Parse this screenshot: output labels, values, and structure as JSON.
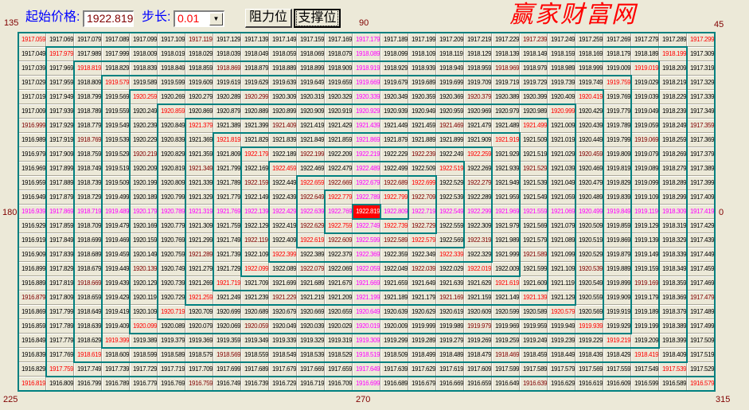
{
  "toolbar": {
    "start_price_label": "起始价格:",
    "start_price_value": "1922.8199",
    "step_label": "步长:",
    "step_value": "0.01",
    "resistance_button": "阻力位",
    "support_button": "支撑位",
    "dropdown_icon": "chevron-down-icon"
  },
  "angles": {
    "a135": "135",
    "a90": "90",
    "a45": "45",
    "a180": "180",
    "a0": "0",
    "a225": "225",
    "a270": "270",
    "a315": "315"
  },
  "watermark": "赢家财富网",
  "colors": {
    "grid_line": "#008080",
    "diagonal": "#ff0000",
    "cardinal": "#ff00ff",
    "half_angle": "#800000",
    "center_bg": "#ff0000",
    "center_text": "#ffffff",
    "label": "#0000ff",
    "angle": "#800000"
  },
  "grid": [
    [
      "1917.0599",
      "1917.0699",
      "1917.0799",
      "1917.0899",
      "1917.0999",
      "1917.1099",
      "1917.1199",
      "1917.1299",
      "1917.1399",
      "1917.1499",
      "1917.1599",
      "1917.1699",
      "1917.1799",
      "1917.1899",
      "1917.1999",
      "1917.2099",
      "1917.2199",
      "1917.2299",
      "1917.2399",
      "1917.2499",
      "1917.2599",
      "1917.2699",
      "1917.2799",
      "1917.2899",
      "1917.2999"
    ],
    [
      "1917.0499",
      "1917.9799",
      "1917.9899",
      "1917.9999",
      "1918.0099",
      "1918.0199",
      "1918.0299",
      "1918.0399",
      "1918.0499",
      "1918.0599",
      "1918.0699",
      "1918.0799",
      "1918.0899",
      "1918.0999",
      "1918.1099",
      "1918.1199",
      "1918.1299",
      "1918.1399",
      "1918.1499",
      "1918.1599",
      "1918.1699",
      "1918.1799",
      "1918.1899",
      "1918.1999",
      "1917.3099"
    ],
    [
      "1917.0399",
      "1917.9699",
      "1918.8199",
      "1918.8299",
      "1918.8399",
      "1918.8499",
      "1918.8599",
      "1918.8699",
      "1918.8799",
      "1918.8899",
      "1918.8999",
      "1918.9099",
      "1918.9199",
      "1918.9299",
      "1918.9399",
      "1918.9499",
      "1918.9599",
      "1918.9699",
      "1918.9799",
      "1918.9899",
      "1918.9999",
      "1919.0099",
      "1919.0199",
      "1918.2099",
      "1917.3199"
    ],
    [
      "1917.0299",
      "1917.9599",
      "1918.8099",
      "1919.5799",
      "1919.5899",
      "1919.5999",
      "1919.6099",
      "1919.6199",
      "1919.6299",
      "1919.6399",
      "1919.6499",
      "1919.6599",
      "1919.6699",
      "1919.6799",
      "1919.6899",
      "1919.6999",
      "1919.7099",
      "1919.7199",
      "1919.7299",
      "1919.7399",
      "1919.7499",
      "1919.7599",
      "1919.0299",
      "1918.2199",
      "1917.3299"
    ],
    [
      "1917.0199",
      "1917.9499",
      "1918.7999",
      "1919.5699",
      "1920.2599",
      "1920.2699",
      "1920.2799",
      "1920.2899",
      "1920.2999",
      "1920.3099",
      "1920.3199",
      "1920.3299",
      "1920.3399",
      "1920.3499",
      "1920.3599",
      "1920.3699",
      "1920.3799",
      "1920.3899",
      "1920.3999",
      "1920.4099",
      "1920.4199",
      "1919.7699",
      "1919.0399",
      "1918.2299",
      "1917.3399"
    ],
    [
      "1917.0099",
      "1917.9399",
      "1918.7899",
      "1919.5599",
      "1920.2499",
      "1920.8599",
      "1920.8699",
      "1920.8799",
      "1920.8899",
      "1920.8999",
      "1920.9099",
      "1920.9199",
      "1920.9299",
      "1920.9399",
      "1920.9499",
      "1920.9599",
      "1920.9699",
      "1920.9799",
      "1920.9899",
      "1920.9999",
      "1920.4299",
      "1919.7799",
      "1919.0499",
      "1918.2399",
      "1917.3499"
    ],
    [
      "1916.9999",
      "1917.9299",
      "1918.7799",
      "1919.5499",
      "1920.2399",
      "1920.8499",
      "1921.3799",
      "1921.3899",
      "1921.3999",
      "1921.4099",
      "1921.4199",
      "1921.4299",
      "1921.4399",
      "1921.4499",
      "1921.4599",
      "1921.4699",
      "1921.4799",
      "1921.4899",
      "1921.4999",
      "1921.0099",
      "1920.4399",
      "1919.7899",
      "1919.0599",
      "1918.2499",
      "1917.3599"
    ],
    [
      "1916.9899",
      "1917.9199",
      "1918.7699",
      "1919.5399",
      "1920.2299",
      "1920.8399",
      "1921.3699",
      "1921.8199",
      "1921.8299",
      "1921.8399",
      "1921.8499",
      "1921.8599",
      "1921.8699",
      "1921.8799",
      "1921.8899",
      "1921.8999",
      "1921.9099",
      "1921.9199",
      "1921.5099",
      "1921.0199",
      "1920.4499",
      "1919.7999",
      "1919.0699",
      "1918.2599",
      "1917.3699"
    ],
    [
      "1916.9799",
      "1917.9099",
      "1918.7599",
      "1919.5299",
      "1920.2199",
      "1920.8299",
      "1921.3599",
      "1921.8099",
      "1922.1799",
      "1922.1899",
      "1922.1999",
      "1922.2099",
      "1922.2199",
      "1922.2299",
      "1922.2399",
      "1922.2499",
      "1922.2599",
      "1921.9299",
      "1921.5199",
      "1921.0299",
      "1920.4599",
      "1919.8099",
      "1919.0799",
      "1918.2699",
      "1917.3799"
    ],
    [
      "1916.9699",
      "1917.8999",
      "1918.7499",
      "1919.5199",
      "1920.2099",
      "1920.8199",
      "1921.3499",
      "1921.7999",
      "1922.1699",
      "1922.4599",
      "1922.4699",
      "1922.4799",
      "1922.4899",
      "1922.4999",
      "1922.5099",
      "1922.5199",
      "1922.2699",
      "1921.9399",
      "1921.5299",
      "1921.0399",
      "1920.4699",
      "1919.8199",
      "1919.0899",
      "1918.2799",
      "1917.3899"
    ],
    [
      "1916.9599",
      "1917.8899",
      "1918.7399",
      "1919.5099",
      "1920.1999",
      "1920.8099",
      "1921.3399",
      "1921.7899",
      "1922.1599",
      "1922.4499",
      "1922.6599",
      "1922.6699",
      "1922.6799",
      "1922.6899",
      "1922.6999",
      "1922.5299",
      "1922.2799",
      "1921.9499",
      "1921.5399",
      "1921.0499",
      "1920.4799",
      "1919.8299",
      "1919.0999",
      "1918.2899",
      "1917.3999"
    ],
    [
      "1916.9499",
      "1917.8799",
      "1918.7299",
      "1919.4999",
      "1920.1899",
      "1920.7999",
      "1921.3299",
      "1921.7799",
      "1922.1499",
      "1922.4399",
      "1922.6499",
      "1922.7799",
      "1922.7899",
      "1922.7999",
      "1922.7099",
      "1922.5399",
      "1922.2899",
      "1921.9599",
      "1921.5499",
      "1921.0599",
      "1920.4899",
      "1919.8399",
      "1919.1099",
      "1918.2999",
      "1917.4099"
    ],
    [
      "1916.9399",
      "1917.8699",
      "1918.7199",
      "1919.4899",
      "1920.1799",
      "1920.7899",
      "1921.3199",
      "1921.7699",
      "1922.1399",
      "1922.4299",
      "1922.6399",
      "1922.7699",
      "1922.8199",
      "1922.8099",
      "1922.7199",
      "1922.5499",
      "1922.2999",
      "1921.9699",
      "1921.5599",
      "1921.0699",
      "1920.4999",
      "1919.8499",
      "1919.1199",
      "1918.3099",
      "1917.4199"
    ],
    [
      "1916.9299",
      "1917.8599",
      "1918.7099",
      "1919.4799",
      "1920.1699",
      "1920.7799",
      "1921.3099",
      "1921.7599",
      "1922.1299",
      "1922.4199",
      "1922.6299",
      "1922.7599",
      "1922.7499",
      "1922.7399",
      "1922.7299",
      "1922.5599",
      "1922.3099",
      "1921.9799",
      "1921.5699",
      "1921.0799",
      "1920.5099",
      "1919.8599",
      "1919.1299",
      "1918.3199",
      "1917.4299"
    ],
    [
      "1916.9199",
      "1917.8499",
      "1918.6999",
      "1919.4699",
      "1920.1599",
      "1920.7699",
      "1921.2999",
      "1921.7499",
      "1922.1199",
      "1922.4099",
      "1922.6199",
      "1922.6099",
      "1922.5999",
      "1922.5899",
      "1922.5799",
      "1922.5699",
      "1922.3199",
      "1921.9899",
      "1921.5799",
      "1921.0899",
      "1920.5199",
      "1919.8699",
      "1919.1399",
      "1918.3299",
      "1917.4399"
    ],
    [
      "1916.9099",
      "1917.8399",
      "1918.6899",
      "1919.4599",
      "1920.1499",
      "1920.7599",
      "1921.2899",
      "1921.7399",
      "1922.1099",
      "1922.3999",
      "1922.3899",
      "1922.3799",
      "1922.3699",
      "1922.3599",
      "1922.3499",
      "1922.3399",
      "1922.3299",
      "1921.9999",
      "1921.5899",
      "1921.0999",
      "1920.5299",
      "1919.8799",
      "1919.1499",
      "1918.3399",
      "1917.4499"
    ],
    [
      "1916.8999",
      "1917.8299",
      "1918.6799",
      "1919.4499",
      "1920.1399",
      "1920.7499",
      "1921.2799",
      "1921.7299",
      "1922.0999",
      "1922.0899",
      "1922.0799",
      "1922.0699",
      "1922.0599",
      "1922.0499",
      "1922.0399",
      "1922.0299",
      "1922.0199",
      "1922.0099",
      "1921.5999",
      "1921.1099",
      "1920.5399",
      "1919.8899",
      "1919.1599",
      "1918.3499",
      "1917.4599"
    ],
    [
      "1916.8899",
      "1917.8199",
      "1918.6699",
      "1919.4399",
      "1920.1299",
      "1920.7399",
      "1921.2699",
      "1921.7199",
      "1921.7099",
      "1921.6999",
      "1921.6899",
      "1921.6799",
      "1921.6699",
      "1921.6599",
      "1921.6499",
      "1921.6399",
      "1921.6299",
      "1921.6199",
      "1921.6099",
      "1921.1199",
      "1920.5499",
      "1919.8999",
      "1919.1699",
      "1918.3599",
      "1917.4699"
    ],
    [
      "1916.8799",
      "1917.8099",
      "1918.6599",
      "1919.4299",
      "1920.1199",
      "1920.7299",
      "1921.2599",
      "1921.2499",
      "1921.2399",
      "1921.2299",
      "1921.2199",
      "1921.2099",
      "1921.1999",
      "1921.1899",
      "1921.1799",
      "1921.1699",
      "1921.1599",
      "1921.1499",
      "1921.1399",
      "1921.1299",
      "1920.5599",
      "1919.9099",
      "1919.1799",
      "1918.3699",
      "1917.4799"
    ],
    [
      "1916.8699",
      "1917.7999",
      "1918.6499",
      "1919.4199",
      "1920.1099",
      "1920.7199",
      "1920.7099",
      "1920.6999",
      "1920.6899",
      "1920.6799",
      "1920.6699",
      "1920.6599",
      "1920.6499",
      "1920.6399",
      "1920.6299",
      "1920.6199",
      "1920.6099",
      "1920.5999",
      "1920.5899",
      "1920.5799",
      "1920.5699",
      "1919.9199",
      "1919.1899",
      "1918.3799",
      "1917.4899"
    ],
    [
      "1916.8599",
      "1917.7899",
      "1918.6399",
      "1919.4099",
      "1920.0999",
      "1920.0899",
      "1920.0799",
      "1920.0699",
      "1920.0599",
      "1920.0499",
      "1920.0399",
      "1920.0299",
      "1920.0199",
      "1920.0099",
      "1919.9999",
      "1919.9899",
      "1919.9799",
      "1919.9699",
      "1919.9599",
      "1919.9499",
      "1919.9399",
      "1919.9299",
      "1919.1999",
      "1918.3899",
      "1917.4999"
    ],
    [
      "1916.8499",
      "1917.7799",
      "1918.6299",
      "1919.3999",
      "1919.3899",
      "1919.3799",
      "1919.3699",
      "1919.3599",
      "1919.3499",
      "1919.3399",
      "1919.3299",
      "1919.3199",
      "1919.3099",
      "1919.2999",
      "1919.2899",
      "1919.2799",
      "1919.2699",
      "1919.2599",
      "1919.2499",
      "1919.2399",
      "1919.2299",
      "1919.2199",
      "1919.2099",
      "1918.3999",
      "1917.5099"
    ],
    [
      "1916.8399",
      "1917.7699",
      "1918.6199",
      "1918.6099",
      "1918.5999",
      "1918.5899",
      "1918.5799",
      "1918.5699",
      "1918.5599",
      "1918.5499",
      "1918.5399",
      "1918.5299",
      "1918.5199",
      "1918.5099",
      "1918.4999",
      "1918.4899",
      "1918.4799",
      "1918.4699",
      "1918.4599",
      "1918.4499",
      "1918.4399",
      "1918.4299",
      "1918.4199",
      "1918.4099",
      "1917.5199"
    ],
    [
      "1916.8299",
      "1917.7599",
      "1917.7499",
      "1917.7399",
      "1917.7299",
      "1917.7199",
      "1917.7099",
      "1917.6999",
      "1917.6899",
      "1917.6799",
      "1917.6699",
      "1917.6599",
      "1917.6499",
      "1917.6399",
      "1917.6299",
      "1917.6199",
      "1917.6099",
      "1917.5999",
      "1917.5899",
      "1917.5799",
      "1917.5699",
      "1917.5599",
      "1917.5499",
      "1917.5399",
      "1917.5299"
    ],
    [
      "1916.8199",
      "1916.8099",
      "1916.7999",
      "1916.7899",
      "1916.7799",
      "1916.7699",
      "1916.7599",
      "1916.7499",
      "1916.7399",
      "1916.7299",
      "1916.7199",
      "1916.7099",
      "1916.6999",
      "1916.6899",
      "1916.6799",
      "1916.6699",
      "1916.6599",
      "1916.6499",
      "1916.6399",
      "1916.6299",
      "1916.6199",
      "1916.6099",
      "1916.5999",
      "1916.5899",
      "1916.5799"
    ]
  ]
}
